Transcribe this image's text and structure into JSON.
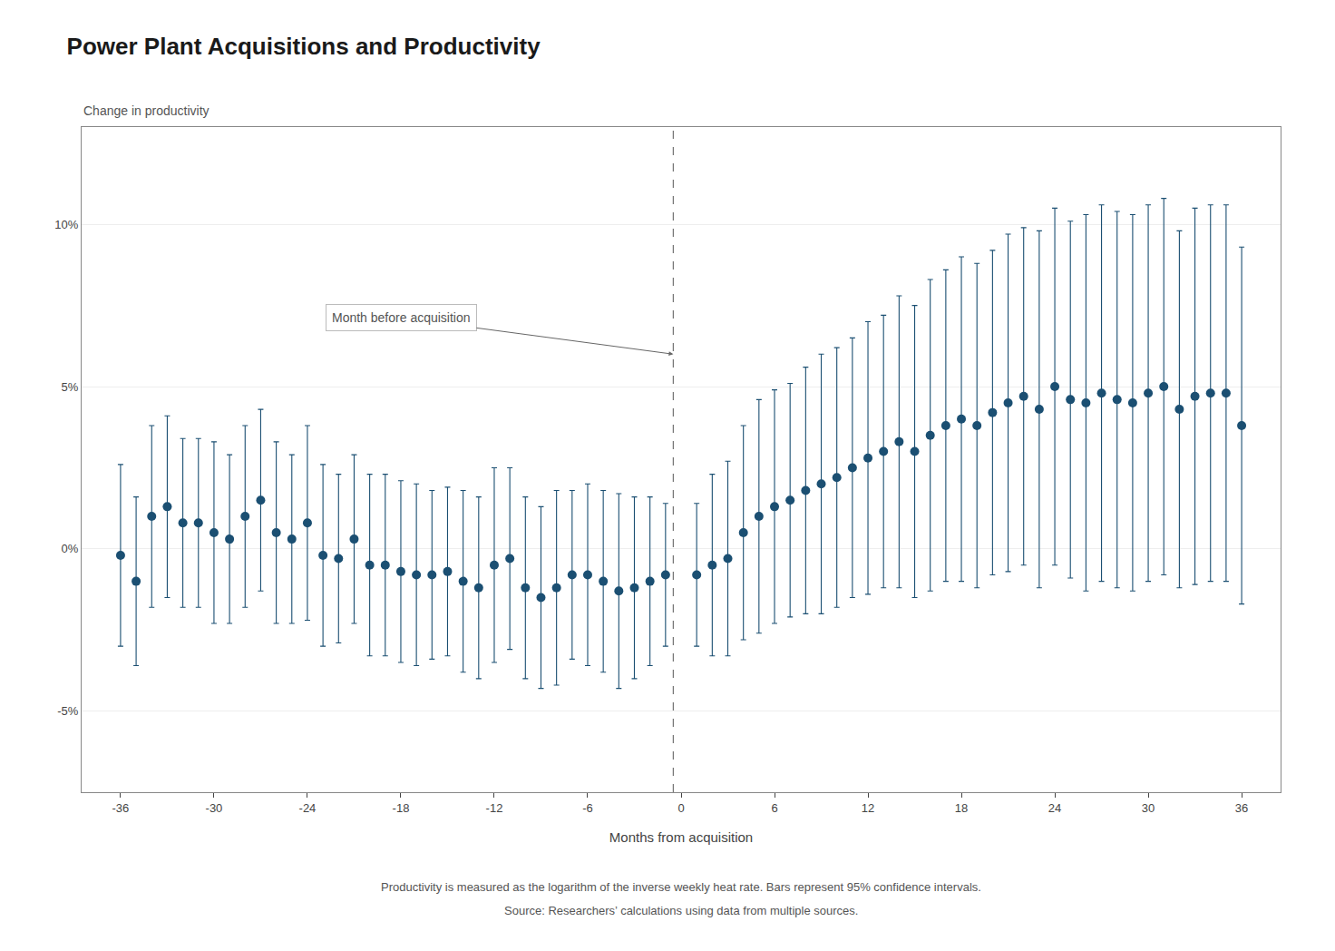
{
  "chart_data": {
    "type": "scatter",
    "title": "Power Plant Acquisitions and Productivity",
    "xlabel": "Months from acquisition",
    "ylabel": "Change in productivity",
    "footnotes": [
      "Productivity is measured as the logarithm of the inverse weekly heat rate. Bars represent 95% confidence intervals.",
      "Source: Researchers’ calculations using data from multiple sources."
    ],
    "annotations": [
      {
        "text": "Month before acquisition",
        "x": -0.5,
        "y": 0.06
      }
    ],
    "color": "#1b4f72",
    "grid": "y",
    "xlim": [
      -38.5,
      38.5
    ],
    "xticks": [
      -36,
      -30,
      -24,
      -18,
      -12,
      -6,
      0,
      6,
      12,
      18,
      24,
      30,
      36
    ],
    "ylim": [
      -0.075,
      0.13
    ],
    "yticks": [
      {
        "value": -0.05,
        "label": "-5%"
      },
      {
        "value": 0.0,
        "label": "0%"
      },
      {
        "value": 0.05,
        "label": "5%"
      },
      {
        "value": 0.1,
        "label": "10%"
      }
    ],
    "x": [
      -36,
      -35,
      -34,
      -33,
      -32,
      -31,
      -30,
      -29,
      -28,
      -27,
      -26,
      -25,
      -24,
      -23,
      -22,
      -21,
      -20,
      -19,
      -18,
      -17,
      -16,
      -15,
      -14,
      -13,
      -12,
      -11,
      -10,
      -9,
      -8,
      -7,
      -6,
      -5,
      -4,
      -3,
      -2,
      -1,
      1,
      2,
      3,
      4,
      5,
      6,
      7,
      8,
      9,
      10,
      11,
      12,
      13,
      14,
      15,
      16,
      17,
      18,
      19,
      20,
      21,
      22,
      23,
      24,
      25,
      26,
      27,
      28,
      29,
      30,
      31,
      32,
      33,
      34,
      35,
      36
    ],
    "values": [
      -0.002,
      -0.01,
      0.01,
      0.013,
      0.008,
      0.008,
      0.005,
      0.003,
      0.01,
      0.015,
      0.005,
      0.003,
      0.008,
      -0.002,
      -0.003,
      0.003,
      -0.005,
      -0.005,
      -0.007,
      -0.008,
      -0.008,
      -0.007,
      -0.01,
      -0.012,
      -0.005,
      -0.003,
      -0.012,
      -0.015,
      -0.012,
      -0.008,
      -0.008,
      -0.01,
      -0.013,
      -0.012,
      -0.01,
      -0.008,
      -0.008,
      -0.005,
      -0.003,
      0.005,
      0.01,
      0.013,
      0.015,
      0.018,
      0.02,
      0.022,
      0.025,
      0.028,
      0.03,
      0.033,
      0.03,
      0.035,
      0.038,
      0.04,
      0.038,
      0.042,
      0.045,
      0.047,
      0.043,
      0.05,
      0.046,
      0.045,
      0.048,
      0.046,
      0.045,
      0.048,
      0.05,
      0.043,
      0.047,
      0.048,
      0.048,
      0.038
    ],
    "errors": [
      0.028,
      0.026,
      0.028,
      0.028,
      0.026,
      0.026,
      0.028,
      0.026,
      0.028,
      0.028,
      0.028,
      0.026,
      0.03,
      0.028,
      0.026,
      0.026,
      0.028,
      0.028,
      0.028,
      0.028,
      0.026,
      0.026,
      0.028,
      0.028,
      0.03,
      0.028,
      0.028,
      0.028,
      0.03,
      0.026,
      0.028,
      0.028,
      0.03,
      0.028,
      0.026,
      0.022,
      0.022,
      0.028,
      0.03,
      0.033,
      0.036,
      0.036,
      0.036,
      0.038,
      0.04,
      0.04,
      0.04,
      0.042,
      0.042,
      0.045,
      0.045,
      0.048,
      0.048,
      0.05,
      0.05,
      0.05,
      0.052,
      0.052,
      0.055,
      0.055,
      0.055,
      0.058,
      0.058,
      0.058,
      0.058,
      0.058,
      0.058,
      0.055,
      0.058,
      0.058,
      0.058,
      0.055
    ]
  }
}
